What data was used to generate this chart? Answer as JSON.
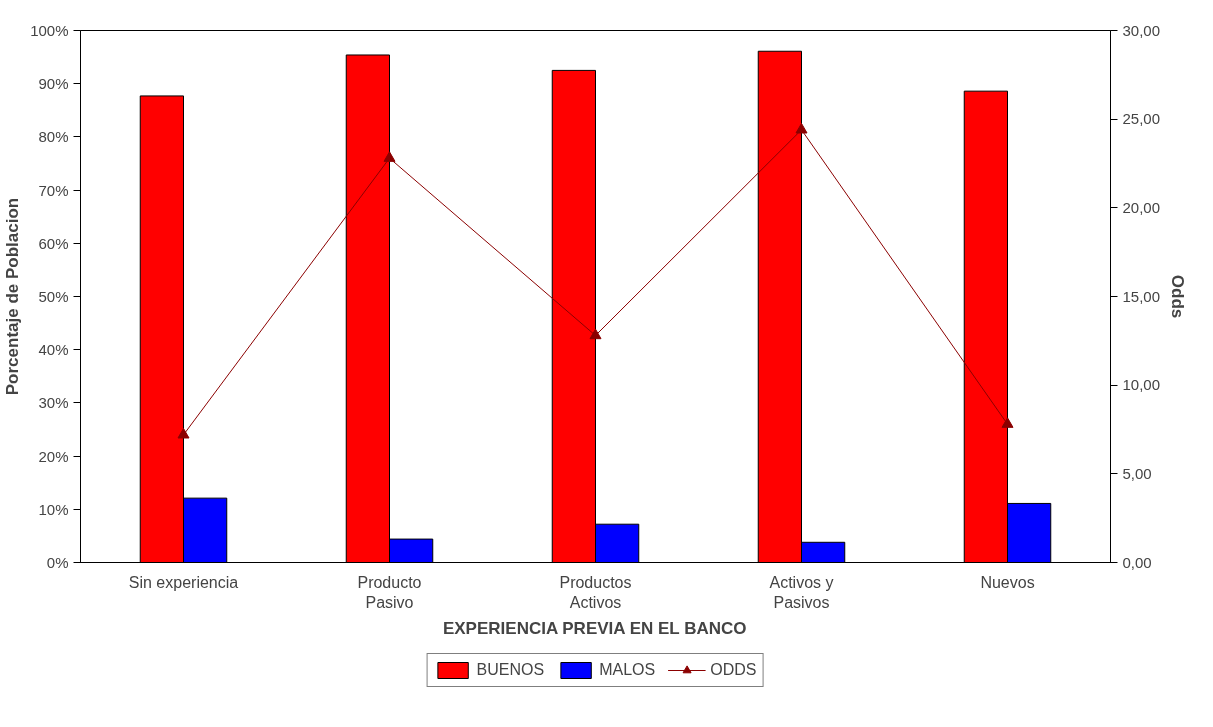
{
  "chart_data": {
    "type": "bar",
    "xlabel": "EXPERIENCIA PREVIA EN EL BANCO",
    "ylabel": "Porcentaje de Poblacion",
    "y2label": "Odds",
    "categories": [
      "Sin experiencia",
      "Producto\nPasivo",
      "Productos\nActivos",
      "Activos y\nPasivos",
      "Nuevos"
    ],
    "series": [
      {
        "name": "BUENOS",
        "color": "#ff0000",
        "values": [
          87.7,
          95.4,
          92.5,
          96.1,
          88.6
        ]
      },
      {
        "name": "MALOS",
        "color": "#0000ff",
        "values": [
          12.1,
          4.4,
          7.2,
          3.8,
          11.1
        ]
      },
      {
        "name": "ODDS",
        "type": "line",
        "axis": "y2",
        "color": "#8b0000",
        "marker": "triangle",
        "values": [
          7.2,
          22.8,
          12.8,
          24.4,
          7.8
        ]
      }
    ],
    "ylim": [
      0,
      100
    ],
    "yticks": [
      {
        "value": 0,
        "label": "0%"
      },
      {
        "value": 10,
        "label": "10%"
      },
      {
        "value": 20,
        "label": "20%"
      },
      {
        "value": 30,
        "label": "30%"
      },
      {
        "value": 40,
        "label": "40%"
      },
      {
        "value": 50,
        "label": "50%"
      },
      {
        "value": 60,
        "label": "60%"
      },
      {
        "value": 70,
        "label": "70%"
      },
      {
        "value": 80,
        "label": "80%"
      },
      {
        "value": 90,
        "label": "90%"
      },
      {
        "value": 100,
        "label": "100%"
      }
    ],
    "y2lim": [
      0,
      30
    ],
    "y2ticks": [
      {
        "value": 0,
        "label": "0,00"
      },
      {
        "value": 5,
        "label": "5,00"
      },
      {
        "value": 10,
        "label": "10,00"
      },
      {
        "value": 15,
        "label": "15,00"
      },
      {
        "value": 20,
        "label": "20,00"
      },
      {
        "value": 25,
        "label": "25,00"
      },
      {
        "value": 30,
        "label": "30,00"
      }
    ],
    "grid": false,
    "legend": "bottom"
  }
}
